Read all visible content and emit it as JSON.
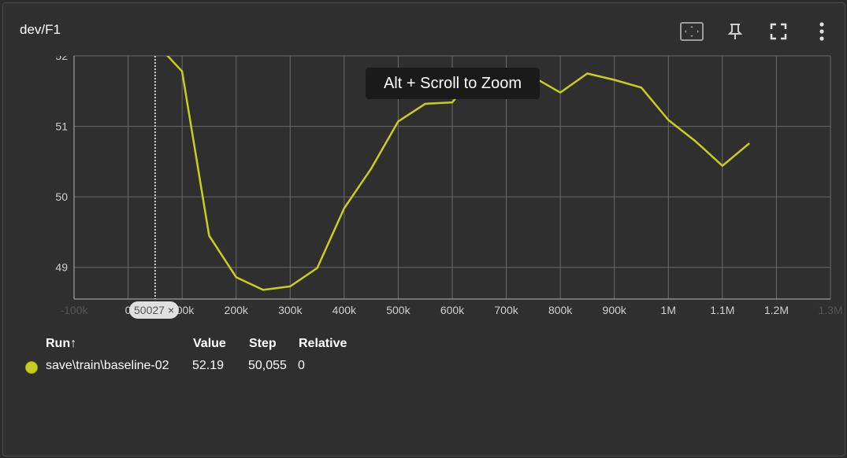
{
  "card": {
    "title": "dev/F1"
  },
  "toolbar": {
    "fit_icon": "fit-domain-icon",
    "pin_icon": "pin-icon",
    "fullscreen_icon": "fullscreen-icon",
    "more_icon": "more-vert-icon"
  },
  "tooltip": {
    "text": "Alt + Scroll to Zoom"
  },
  "step_chip": {
    "value": "50027",
    "close": "×"
  },
  "legend": {
    "headers": {
      "run": "Run",
      "sort_arrow": "↑",
      "value": "Value",
      "step": "Step",
      "relative": "Relative"
    },
    "rows": [
      {
        "run": "save\\train\\baseline-02",
        "value": "52.19",
        "step": "50,055",
        "relative": "0",
        "color": "#c6cf1e"
      }
    ]
  },
  "chart_data": {
    "type": "line",
    "title": "",
    "xlabel": "",
    "ylabel": "",
    "xlim": [
      -100000,
      1300000
    ],
    "ylim": [
      48.55,
      52.0
    ],
    "x_ticks": [
      "-100k",
      "0",
      "100k",
      "200k",
      "300k",
      "400k",
      "500k",
      "600k",
      "700k",
      "800k",
      "900k",
      "1M",
      "1.1M",
      "1.2M",
      "1.3M"
    ],
    "x_tick_values": [
      -100000,
      0,
      100000,
      200000,
      300000,
      400000,
      500000,
      600000,
      700000,
      800000,
      900000,
      1000000,
      1100000,
      1200000,
      1300000
    ],
    "y_ticks": [
      "49",
      "50",
      "51",
      "52"
    ],
    "y_tick_values": [
      49,
      50,
      51,
      52
    ],
    "grid": true,
    "series": [
      {
        "name": "save\\train\\baseline-02",
        "color": "#c6cf1e",
        "x": [
          50000,
          100000,
          150000,
          200000,
          250000,
          300000,
          350000,
          400000,
          450000,
          500000,
          550000,
          600000,
          650000,
          700000,
          750000,
          800000,
          850000,
          900000,
          950000,
          1000000,
          1050000,
          1100000,
          1150000
        ],
        "y": [
          52.19,
          51.78,
          49.45,
          48.86,
          48.68,
          48.73,
          48.99,
          49.84,
          50.4,
          51.07,
          51.32,
          51.34,
          51.79,
          51.82,
          51.7,
          51.48,
          51.75,
          51.66,
          51.55,
          51.09,
          50.79,
          50.44,
          50.76
        ]
      }
    ],
    "cursor_step": 50027
  }
}
